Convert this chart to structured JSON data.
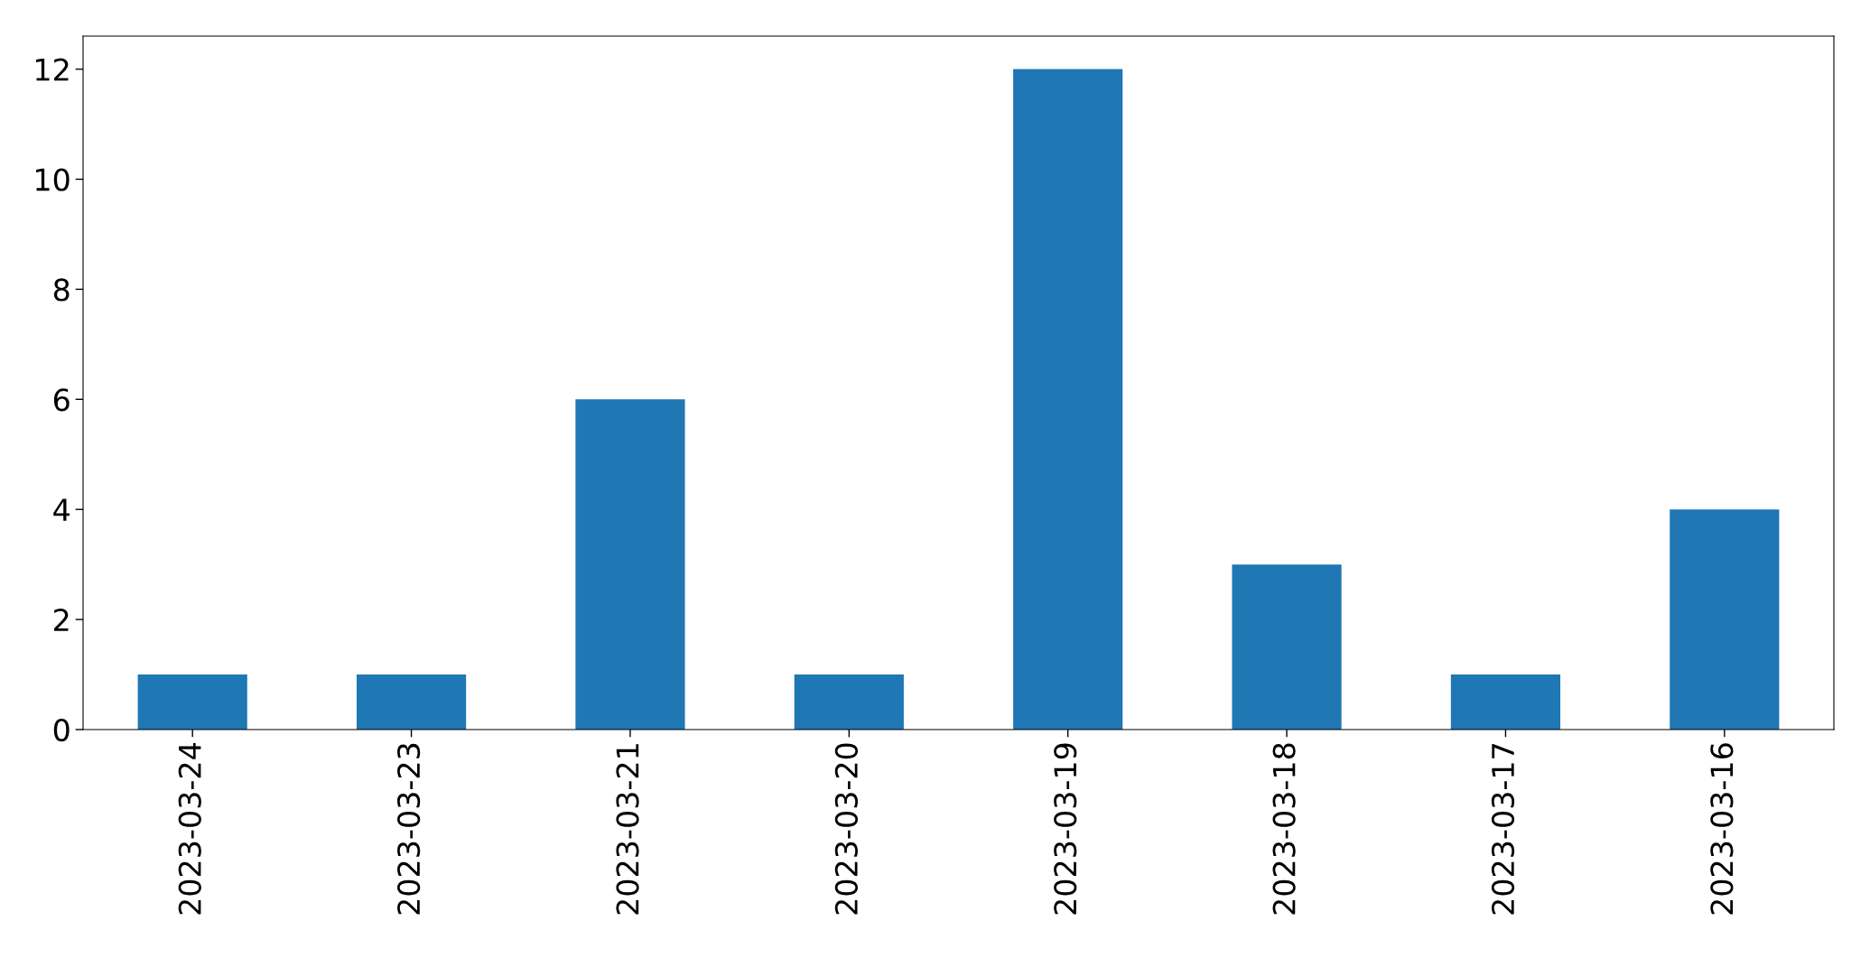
{
  "chart_data": {
    "type": "bar",
    "categories": [
      "2023-03-24",
      "2023-03-23",
      "2023-03-21",
      "2023-03-20",
      "2023-03-19",
      "2023-03-18",
      "2023-03-17",
      "2023-03-16"
    ],
    "values": [
      1,
      1,
      6,
      1,
      12,
      3,
      1,
      4
    ],
    "color": "#1f77b4",
    "ylim": [
      0,
      12.6
    ],
    "yticks": [
      0,
      2,
      4,
      6,
      8,
      10,
      12
    ]
  }
}
